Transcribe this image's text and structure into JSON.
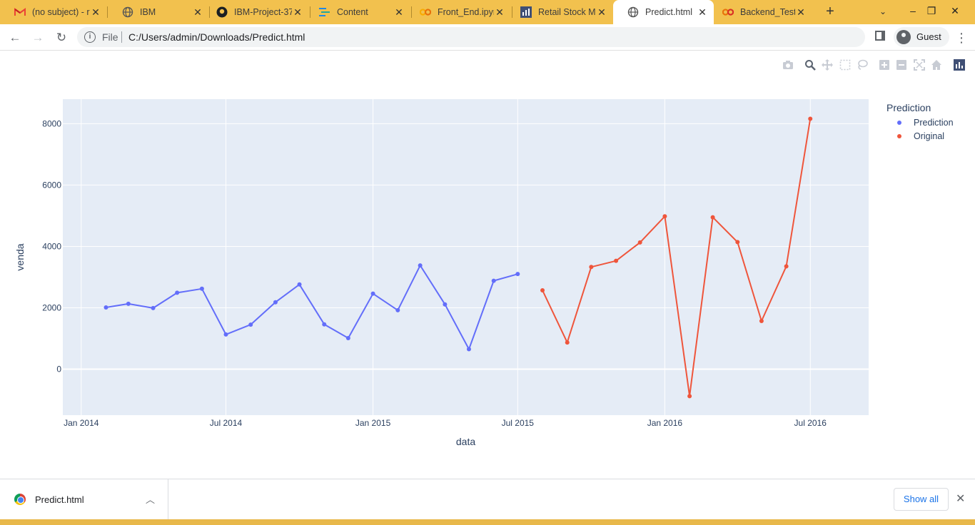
{
  "browser": {
    "tabs": [
      {
        "title": "(no subject) - r",
        "icon": "gmail-icon"
      },
      {
        "title": "IBM",
        "icon": "globe-icon"
      },
      {
        "title": "IBM-Project-37",
        "icon": "github-icon"
      },
      {
        "title": "Content",
        "icon": "content-icon"
      },
      {
        "title": "Front_End.ipyn",
        "icon": "colab-icon"
      },
      {
        "title": "Retail Stock M",
        "icon": "chart-icon"
      },
      {
        "title": "Predict.html",
        "icon": "globe-icon",
        "active": true
      },
      {
        "title": "Backend_Testin",
        "icon": "colab-icon"
      }
    ],
    "address": {
      "scheme_label": "File",
      "url": "C:/Users/admin/Downloads/Predict.html"
    },
    "profile_label": "Guest",
    "colors": {
      "tabstrip": "#f2c14e",
      "toolbar": "#ffffff"
    }
  },
  "modebar": {
    "icons": [
      "camera-icon",
      "zoom-icon",
      "pan-icon",
      "box-select-icon",
      "lasso-select-icon",
      "zoom-in-icon",
      "zoom-out-icon",
      "autoscale-icon",
      "reset-axes-icon",
      "plotly-logo-icon"
    ]
  },
  "chart_data": {
    "type": "line",
    "title": "",
    "xlabel": "data",
    "ylabel": "venda",
    "x_axis_type": "date",
    "xlim": [
      "2013-12-09",
      "2016-09-12"
    ],
    "ylim": [
      -1500,
      8800
    ],
    "x_ticks": [
      "2014-01-01",
      "2014-07-01",
      "2015-01-01",
      "2015-07-01",
      "2016-01-01",
      "2016-07-01"
    ],
    "x_tick_labels": [
      "Jan 2014",
      "Jul 2014",
      "Jan 2015",
      "Jul 2015",
      "Jan 2016",
      "Jul 2016"
    ],
    "y_ticks": [
      0,
      2000,
      4000,
      6000,
      8000
    ],
    "y_tick_labels": [
      "0",
      "2000",
      "4000",
      "6000",
      "8000"
    ],
    "grid": true,
    "legend": {
      "title": "Prediction",
      "placement": "top-right"
    },
    "plot_background": "#e5ecf6",
    "series": [
      {
        "name": "Prediction",
        "color": "#636efa",
        "x": [
          "2014-02-01",
          "2014-03-01",
          "2014-04-01",
          "2014-05-01",
          "2014-06-01",
          "2014-07-01",
          "2014-08-01",
          "2014-09-01",
          "2014-10-01",
          "2014-11-01",
          "2014-12-01",
          "2015-01-01",
          "2015-02-01",
          "2015-03-01",
          "2015-04-01",
          "2015-05-01",
          "2015-06-01",
          "2015-07-01"
        ],
        "y": [
          2010,
          2130,
          1990,
          2490,
          2620,
          1130,
          1450,
          2180,
          2760,
          1460,
          1010,
          2460,
          1920,
          3380,
          2110,
          650,
          2880,
          3100
        ]
      },
      {
        "name": "Original",
        "color": "#ef553b",
        "x": [
          "2015-08-01",
          "2015-09-01",
          "2015-10-01",
          "2015-11-01",
          "2015-12-01",
          "2016-01-01",
          "2016-02-01",
          "2016-03-01",
          "2016-04-01",
          "2016-05-01",
          "2016-06-01",
          "2016-07-01"
        ],
        "y": [
          2570,
          870,
          3330,
          3530,
          4130,
          4980,
          -880,
          4950,
          4140,
          1570,
          3350,
          8160
        ]
      }
    ]
  },
  "download_bar": {
    "file_name": "Predict.html",
    "show_all_label": "Show all"
  }
}
